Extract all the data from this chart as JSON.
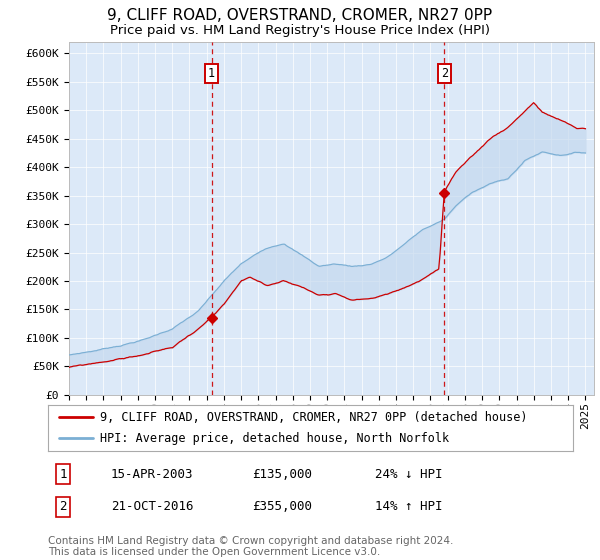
{
  "title_line1": "9, CLIFF ROAD, OVERSTRAND, CROMER, NR27 0PP",
  "title_line2": "Price paid vs. HM Land Registry's House Price Index (HPI)",
  "legend_line1": "9, CLIFF ROAD, OVERSTRAND, CROMER, NR27 0PP (detached house)",
  "legend_line2": "HPI: Average price, detached house, North Norfolk",
  "transaction1_date": "15-APR-2003",
  "transaction1_price": 135000,
  "transaction1_price_str": "£135,000",
  "transaction1_hpi_diff": "24% ↓ HPI",
  "transaction1_date_num": 2003.29,
  "transaction2_date": "21-OCT-2016",
  "transaction2_price": 355000,
  "transaction2_price_str": "£355,000",
  "transaction2_hpi_diff": "14% ↑ HPI",
  "transaction2_date_num": 2016.8,
  "ylim": [
    0,
    620000
  ],
  "xlim_start": 1995.0,
  "xlim_end": 2025.5,
  "plot_bg_color": "#dce9f8",
  "red_line_color": "#cc0000",
  "blue_line_color": "#7bafd4",
  "fill_color": "#c5d9ef",
  "grid_color": "#ffffff",
  "outer_bg": "#f0f0f0",
  "title_fontsize": 11,
  "subtitle_fontsize": 9.5,
  "tick_fontsize": 8,
  "legend_fontsize": 8.5,
  "annotation_fontsize": 9,
  "footer_fontsize": 7.5,
  "footer_text": "Contains HM Land Registry data © Crown copyright and database right 2024.\nThis data is licensed under the Open Government Licence v3.0."
}
